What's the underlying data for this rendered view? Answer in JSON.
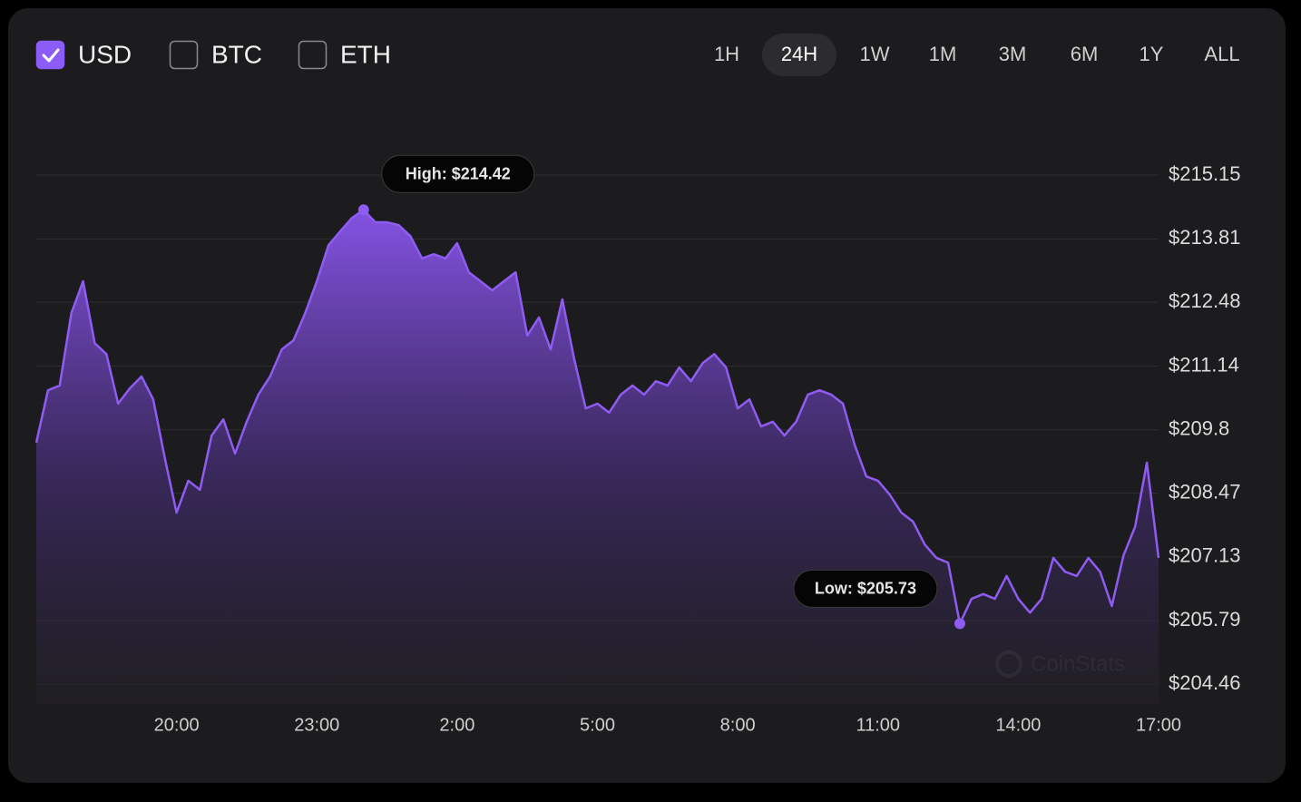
{
  "currencies": [
    {
      "label": "USD",
      "checked": true
    },
    {
      "label": "BTC",
      "checked": false
    },
    {
      "label": "ETH",
      "checked": false
    }
  ],
  "ranges": [
    {
      "label": "1H",
      "active": false
    },
    {
      "label": "24H",
      "active": true
    },
    {
      "label": "1W",
      "active": false
    },
    {
      "label": "1M",
      "active": false
    },
    {
      "label": "3M",
      "active": false
    },
    {
      "label": "6M",
      "active": false
    },
    {
      "label": "1Y",
      "active": false
    },
    {
      "label": "ALL",
      "active": false
    }
  ],
  "watermark": "CoinStats",
  "chart_data": {
    "type": "area",
    "color": "#8f5cf2",
    "categories": [
      null,
      null,
      null,
      null,
      null,
      null,
      null,
      null,
      null,
      null,
      null,
      null,
      "20:00",
      null,
      null,
      null,
      null,
      null,
      null,
      null,
      null,
      null,
      null,
      null,
      "23:00",
      null,
      null,
      null,
      null,
      null,
      null,
      null,
      null,
      null,
      null,
      null,
      "2:00",
      null,
      null,
      null,
      null,
      null,
      null,
      null,
      null,
      null,
      null,
      null,
      "5:00",
      null,
      null,
      null,
      null,
      null,
      null,
      null,
      null,
      null,
      null,
      null,
      "8:00",
      null,
      null,
      null,
      null,
      null,
      null,
      null,
      null,
      null,
      null,
      null,
      "11:00",
      null,
      null,
      null,
      null,
      null,
      null,
      null,
      null,
      null,
      null,
      null,
      "14:00",
      null,
      null,
      null,
      null,
      null,
      null,
      null,
      null,
      null,
      null,
      null,
      "17:00"
    ],
    "values": [
      209.53,
      210.63,
      210.73,
      212.25,
      212.92,
      211.62,
      211.39,
      210.35,
      210.67,
      210.92,
      210.44,
      209.2,
      208.06,
      208.73,
      208.54,
      209.68,
      210.02,
      209.3,
      209.97,
      210.54,
      210.92,
      211.49,
      211.68,
      212.25,
      212.92,
      213.68,
      213.97,
      214.25,
      214.42,
      214.16,
      214.16,
      214.1,
      213.87,
      213.4,
      213.49,
      213.4,
      213.72,
      213.11,
      212.92,
      212.73,
      212.92,
      213.11,
      211.78,
      212.16,
      211.49,
      212.54,
      211.3,
      210.25,
      210.35,
      210.16,
      210.54,
      210.73,
      210.54,
      210.82,
      210.73,
      211.11,
      210.82,
      211.2,
      211.39,
      211.11,
      210.25,
      210.44,
      209.87,
      209.97,
      209.68,
      209.97,
      210.54,
      210.63,
      210.54,
      210.35,
      209.49,
      208.82,
      208.73,
      208.44,
      208.06,
      207.87,
      207.39,
      207.11,
      207.01,
      205.73,
      206.25,
      206.35,
      206.25,
      206.73,
      206.25,
      205.96,
      206.25,
      207.11,
      206.82,
      206.73,
      207.11,
      206.82,
      206.1,
      207.16,
      207.77,
      209.11,
      207.11
    ],
    "ylim": [
      204.46,
      215.15
    ],
    "yticks": [
      {
        "value": 215.15,
        "label": "$215.15"
      },
      {
        "value": 213.81,
        "label": "$213.81"
      },
      {
        "value": 212.48,
        "label": "$212.48"
      },
      {
        "value": 211.14,
        "label": "$211.14"
      },
      {
        "value": 209.8,
        "label": "$209.8"
      },
      {
        "value": 208.47,
        "label": "$208.47"
      },
      {
        "value": 207.13,
        "label": "$207.13"
      },
      {
        "value": 205.79,
        "label": "$205.79"
      },
      {
        "value": 204.46,
        "label": "$204.46"
      }
    ],
    "grid": true,
    "annotations": [
      "High: $214.42",
      "Low: $205.73"
    ]
  }
}
